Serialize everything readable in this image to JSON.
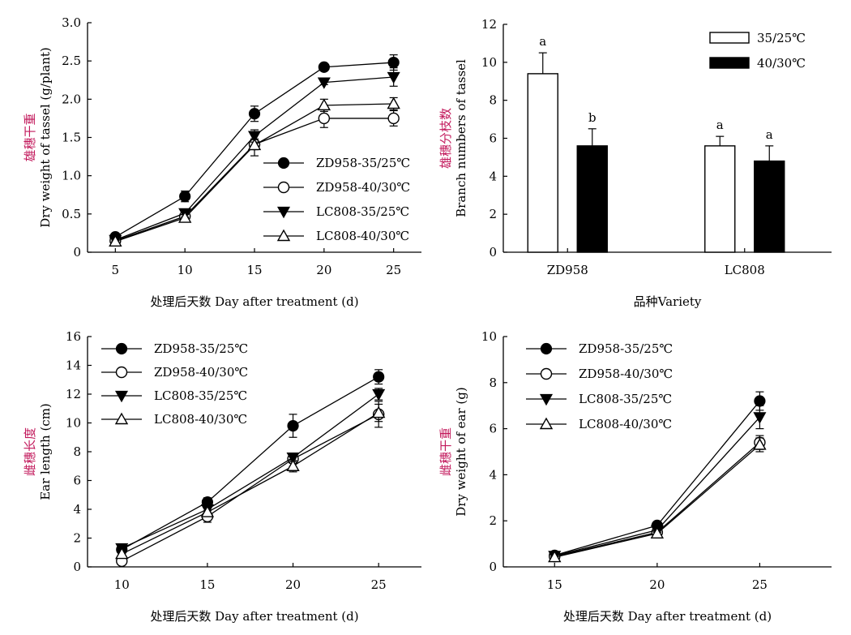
{
  "chart_data": [
    {
      "id": "a",
      "type": "line",
      "xlabel_cn": "处理后天数",
      "xlabel_en": "Day after treatment (d)",
      "ylabel_cn": "雄穗干重",
      "ylabel_en": "Dry weight of tassel (g/plant)",
      "x": [
        5,
        10,
        15,
        20,
        25
      ],
      "xticks": [
        "5",
        "10",
        "15",
        "20",
        "25"
      ],
      "ylim": [
        0,
        3.0
      ],
      "yticks": [
        "0",
        "0.5",
        "1.0",
        "1.5",
        "2.0",
        "2.5",
        "3.0"
      ],
      "legend_position": "lower-right",
      "series": [
        {
          "name": "ZD958-35/25℃",
          "marker": "filled-circle",
          "values": [
            0.2,
            0.73,
            1.81,
            2.42,
            2.48
          ],
          "errors": [
            0.03,
            0.07,
            0.1,
            0.04,
            0.1
          ]
        },
        {
          "name": "ZD958-40/30℃",
          "marker": "open-circle",
          "values": [
            0.15,
            0.47,
            1.41,
            1.75,
            1.75
          ],
          "errors": [
            0.02,
            0.04,
            0.07,
            0.12,
            0.1
          ]
        },
        {
          "name": "LC808-35/25℃",
          "marker": "filled-triangle-down",
          "values": [
            0.16,
            0.51,
            1.52,
            2.22,
            2.29
          ],
          "errors": [
            0.02,
            0.05,
            0.08,
            0.03,
            0.12
          ]
        },
        {
          "name": "LC808-40/30℃",
          "marker": "open-triangle-up",
          "values": [
            0.14,
            0.45,
            1.4,
            1.92,
            1.94
          ],
          "errors": [
            0.02,
            0.04,
            0.14,
            0.08,
            0.08
          ]
        }
      ]
    },
    {
      "id": "b",
      "type": "bar",
      "xlabel_cn": "品种",
      "xlabel_en": "Variety",
      "ylabel_cn": "雄穗分枝数",
      "ylabel_en": "Branch numbers of tassel",
      "categories": [
        "ZD958",
        "LC808"
      ],
      "ylim": [
        0,
        12
      ],
      "yticks": [
        "0",
        "2",
        "4",
        "6",
        "8",
        "10",
        "12"
      ],
      "legend_position": "top-right",
      "series": [
        {
          "name": "35/25℃",
          "fill": "#ffffff",
          "values": [
            9.4,
            5.6
          ],
          "errors": [
            1.1,
            0.5
          ],
          "letters": [
            "a",
            "a"
          ]
        },
        {
          "name": "40/30℃",
          "fill": "#000000",
          "values": [
            5.6,
            4.8
          ],
          "errors": [
            0.9,
            0.8
          ],
          "letters": [
            "b",
            "a"
          ]
        }
      ]
    },
    {
      "id": "c",
      "type": "line",
      "xlabel_cn": "处理后天数",
      "xlabel_en": "Day after treatment (d)",
      "ylabel_cn": "雌穗长度",
      "ylabel_en": "Ear length (cm)",
      "x": [
        10,
        15,
        20,
        25
      ],
      "xticks": [
        "10",
        "15",
        "20",
        "25"
      ],
      "ylim": [
        0,
        16
      ],
      "yticks": [
        "0",
        "2",
        "4",
        "6",
        "8",
        "10",
        "12",
        "14",
        "16"
      ],
      "legend_position": "top-left",
      "series": [
        {
          "name": "ZD958-35/25℃",
          "marker": "filled-circle",
          "values": [
            1.2,
            4.5,
            9.8,
            13.2
          ],
          "errors": [
            0.2,
            0.3,
            0.8,
            0.5
          ]
        },
        {
          "name": "ZD958-40/30℃",
          "marker": "open-circle",
          "values": [
            0.4,
            3.5,
            7.5,
            10.6
          ],
          "errors": [
            0.1,
            0.4,
            0.3,
            0.9
          ]
        },
        {
          "name": "LC808-35/25℃",
          "marker": "filled-triangle-down",
          "values": [
            1.3,
            4.0,
            7.6,
            12.0
          ],
          "errors": [
            0.2,
            0.3,
            0.3,
            0.4
          ]
        },
        {
          "name": "LC808-40/30℃",
          "marker": "open-triangle-up",
          "values": [
            0.9,
            3.8,
            7.0,
            10.7
          ],
          "errors": [
            0.2,
            0.3,
            0.4,
            0.6
          ]
        }
      ]
    },
    {
      "id": "d",
      "type": "line",
      "xlabel_cn": "处理后天数",
      "xlabel_en": "Day after treatment (d)",
      "ylabel_cn": "雌穗干重",
      "ylabel_en": "Dry weight of ear (g)",
      "x": [
        15,
        20,
        25
      ],
      "xticks": [
        "15",
        "20",
        "25"
      ],
      "ylim": [
        0,
        10
      ],
      "yticks": [
        "0",
        "2",
        "4",
        "6",
        "8",
        "10"
      ],
      "legend_position": "top-left",
      "series": [
        {
          "name": "ZD958-35/25℃",
          "marker": "filled-circle",
          "values": [
            0.5,
            1.8,
            7.2
          ],
          "errors": [
            0.05,
            0.1,
            0.4
          ]
        },
        {
          "name": "ZD958-40/30℃",
          "marker": "open-circle",
          "values": [
            0.45,
            1.5,
            5.4
          ],
          "errors": [
            0.04,
            0.1,
            0.3
          ]
        },
        {
          "name": "LC808-35/25℃",
          "marker": "filled-triangle-down",
          "values": [
            0.48,
            1.6,
            6.5
          ],
          "errors": [
            0.05,
            0.1,
            0.5
          ]
        },
        {
          "name": "LC808-40/30℃",
          "marker": "open-triangle-up",
          "values": [
            0.42,
            1.45,
            5.3
          ],
          "errors": [
            0.04,
            0.1,
            0.3
          ]
        }
      ]
    }
  ]
}
